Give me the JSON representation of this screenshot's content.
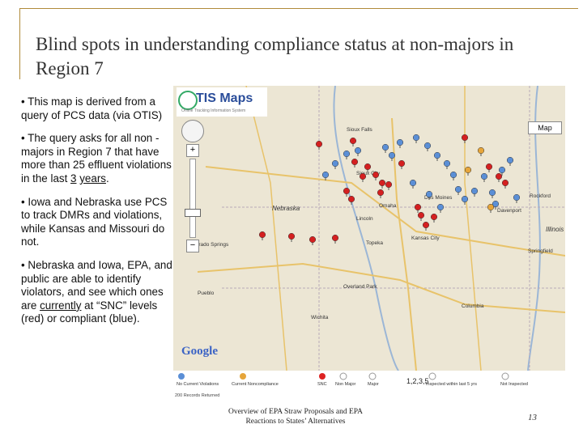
{
  "slide": {
    "title": "Blind spots in understanding compliance status at non-majors in Region 7",
    "bullets": {
      "b1": "• This map is derived from a query of PCS data (via OTIS)",
      "b2_pre": "• The query asks for all non -majors in Region 7 that have more than 25 effluent violations in the last ",
      "b2_u1": "3",
      "b2_mid": " ",
      "b2_u2": "years",
      "b2_post": ".",
      "b3": "• Iowa and Nebraska use PCS to track DMRs and violations, while Kansas and Missouri do not.",
      "b4_pre": "• Nebraska and Iowa, EPA, and public are able to identify violators, and see which ones are ",
      "b4_u": "currently",
      "b4_post": " at “SNC” levels (red) or compliant (blue)."
    },
    "footer": "Overview of EPA Straw Proposals and EPA Reactions to States’ Alternatives",
    "page_number": "13"
  },
  "map": {
    "logo_text": "TIS Maps",
    "logo_sub": "Online Tracking Information System",
    "map_button": "Map",
    "google_logo": "Google",
    "states": [
      "Nebraska",
      "Illinois"
    ],
    "cities": [
      "Sioux Falls",
      "Sioux City",
      "Rockford",
      "Davenport",
      "Des Moines",
      "Lincoln",
      "Omaha",
      "Kansas City",
      "Springfield",
      "Topeka",
      "Overland Park",
      "Columbia",
      "Colorado Springs",
      "Pueblo",
      "Wichita"
    ],
    "markers": {
      "red": [
        [
          180,
          72
        ],
        [
          222,
          68
        ],
        [
          240,
          100
        ],
        [
          250,
          110
        ],
        [
          258,
          120
        ],
        [
          266,
          122
        ],
        [
          234,
          112
        ],
        [
          214,
          130
        ],
        [
          220,
          140
        ],
        [
          306,
          160
        ],
        [
          312,
          172
        ],
        [
          322,
          162
        ],
        [
          302,
          150
        ],
        [
          110,
          184
        ],
        [
          146,
          186
        ],
        [
          172,
          190
        ],
        [
          200,
          188
        ],
        [
          256,
          132
        ],
        [
          224,
          94
        ],
        [
          282,
          96
        ],
        [
          360,
          64
        ],
        [
          390,
          100
        ],
        [
          402,
          112
        ],
        [
          410,
          120
        ]
      ],
      "blue": [
        [
          200,
          96
        ],
        [
          214,
          84
        ],
        [
          228,
          80
        ],
        [
          262,
          76
        ],
        [
          270,
          86
        ],
        [
          280,
          70
        ],
        [
          300,
          64
        ],
        [
          314,
          74
        ],
        [
          326,
          86
        ],
        [
          338,
          96
        ],
        [
          346,
          110
        ],
        [
          352,
          128
        ],
        [
          360,
          140
        ],
        [
          372,
          130
        ],
        [
          384,
          112
        ],
        [
          394,
          132
        ],
        [
          398,
          146
        ],
        [
          406,
          104
        ],
        [
          416,
          92
        ],
        [
          424,
          138
        ],
        [
          188,
          110
        ],
        [
          296,
          120
        ],
        [
          316,
          134
        ],
        [
          330,
          150
        ]
      ],
      "orange": [
        [
          380,
          80
        ],
        [
          364,
          104
        ],
        [
          392,
          150
        ]
      ]
    },
    "legend": {
      "items": [
        "No Current Violations",
        "Current Noncompliance",
        "SNC",
        "Non Major",
        "Major",
        "Inspected within last 5 yrs",
        "Not Inspected"
      ],
      "numbers": "1,2,3,5",
      "records": "200 Records Returned"
    }
  }
}
